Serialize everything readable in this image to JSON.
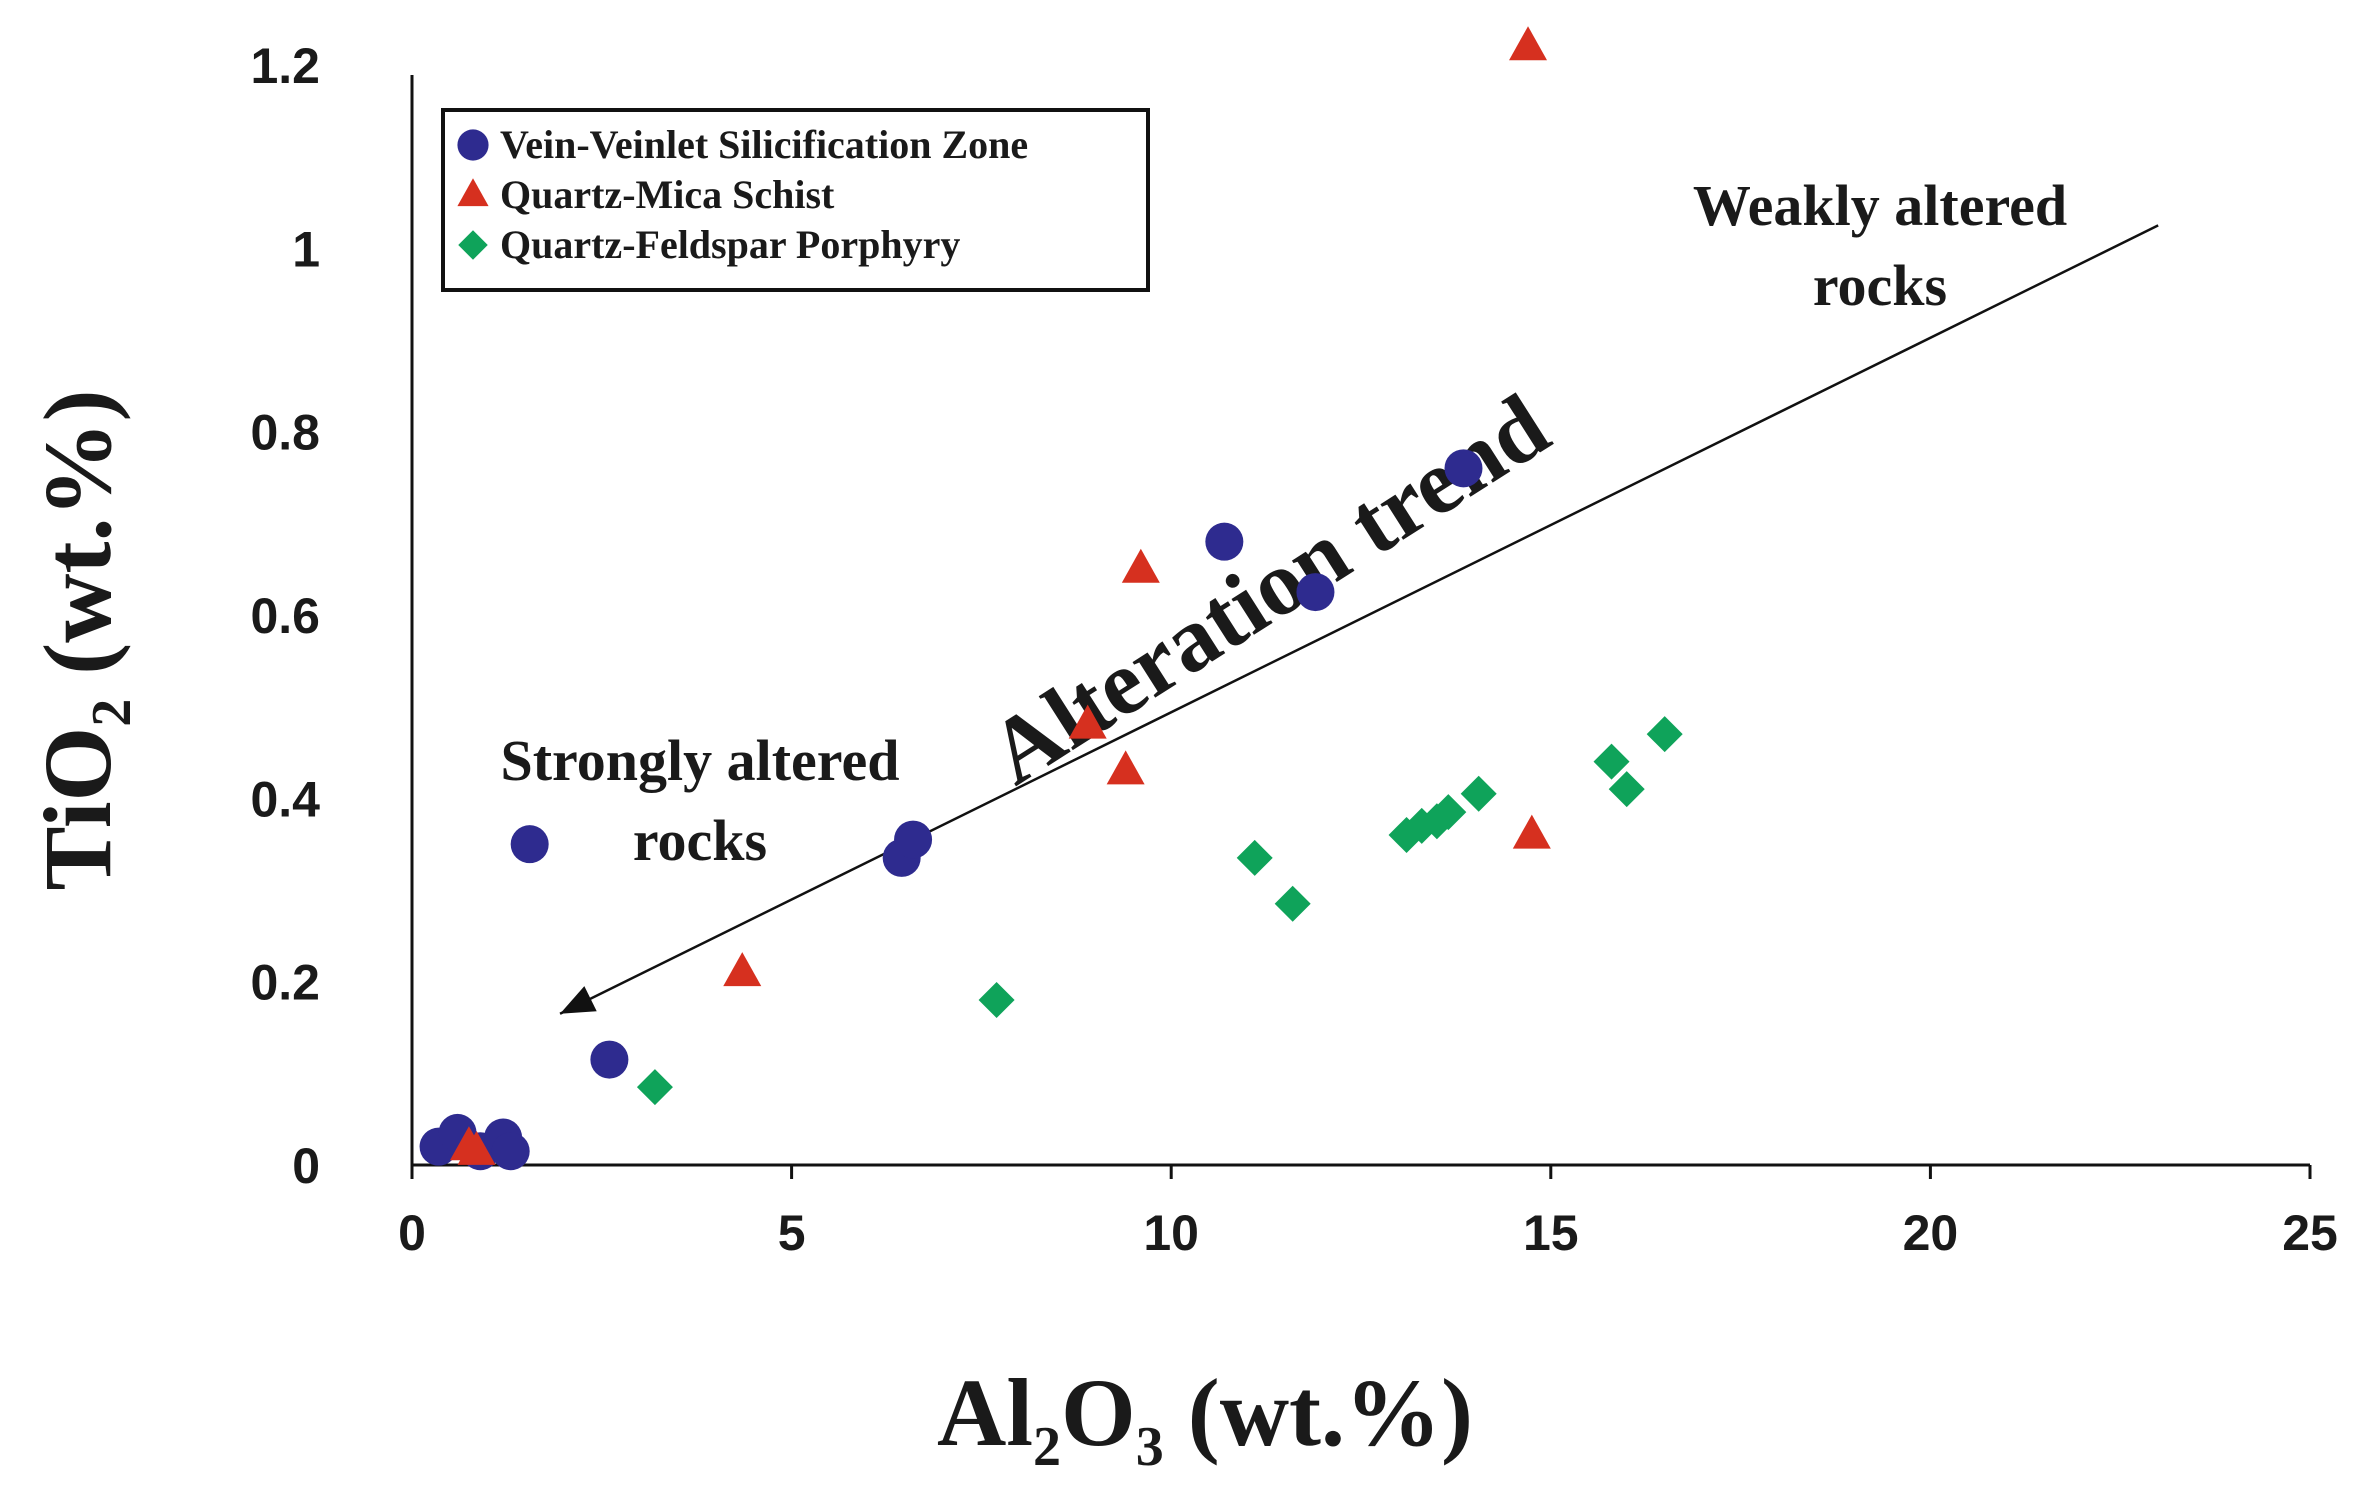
{
  "chart_data": {
    "type": "scatter",
    "title": "",
    "xlabel": "Al2O3 (wt.%)",
    "xlabel_parts": {
      "a": "Al",
      "b": "2",
      "c": "O",
      "d": "3",
      "e": " (wt.%)"
    },
    "ylabel": "TiO2 (wt.%)",
    "ylabel_parts": {
      "a": "TiO",
      "b": "2",
      "c": " (wt.%)"
    },
    "xlim": [
      0,
      25
    ],
    "ylim": [
      0,
      1.2
    ],
    "xticks": [
      0,
      5,
      10,
      15,
      20,
      25
    ],
    "xtick_labels": [
      "0",
      "5",
      "10",
      "15",
      "20",
      "25"
    ],
    "yticks": [
      0,
      0.2,
      0.4,
      0.6,
      0.8,
      1.0,
      1.2
    ],
    "ytick_labels": [
      "0",
      "0.2",
      "0.4",
      "0.6",
      "0.8",
      "1",
      "1.2"
    ],
    "grid": false,
    "legend_position": "top-left",
    "series": [
      {
        "name": "Vein-Veinlet Silicification Zone",
        "marker": "circle",
        "color": "#2e2b8f",
        "x": [
          0.35,
          0.6,
          0.9,
          1.2,
          1.3,
          1.55,
          2.6,
          6.45,
          6.6,
          10.7,
          11.9,
          13.85
        ],
        "y": [
          0.02,
          0.035,
          0.015,
          0.03,
          0.015,
          0.35,
          0.115,
          0.335,
          0.355,
          0.68,
          0.625,
          0.76
        ]
      },
      {
        "name": "Quartz-Mica Schist",
        "marker": "triangle",
        "color": "#d6301f",
        "x": [
          0.75,
          0.85,
          4.35,
          8.9,
          9.4,
          9.6,
          14.75,
          14.7
        ],
        "y": [
          0.02,
          0.015,
          0.21,
          0.48,
          0.43,
          0.65,
          0.36,
          1.22
        ]
      },
      {
        "name": "Quartz-Feldspar Porphyry",
        "marker": "diamond",
        "color": "#0fa35a",
        "x": [
          1.2,
          3.2,
          7.7,
          11.1,
          11.6,
          13.1,
          13.3,
          13.5,
          13.65,
          14.05,
          15.8,
          16.0,
          16.5
        ],
        "y": [
          0.03,
          0.085,
          0.18,
          0.335,
          0.285,
          0.36,
          0.37,
          0.375,
          0.385,
          0.405,
          0.44,
          0.41,
          0.47
        ]
      }
    ],
    "trend_arrow": {
      "from": [
        23,
        1.025
      ],
      "to": [
        1.95,
        0.165
      ]
    },
    "annotations": {
      "weak_line1": "Weakly altered",
      "weak_line2": "rocks",
      "strong_line1": "Strongly altered",
      "strong_line2": "rocks",
      "trend": "Alteration trend"
    }
  }
}
